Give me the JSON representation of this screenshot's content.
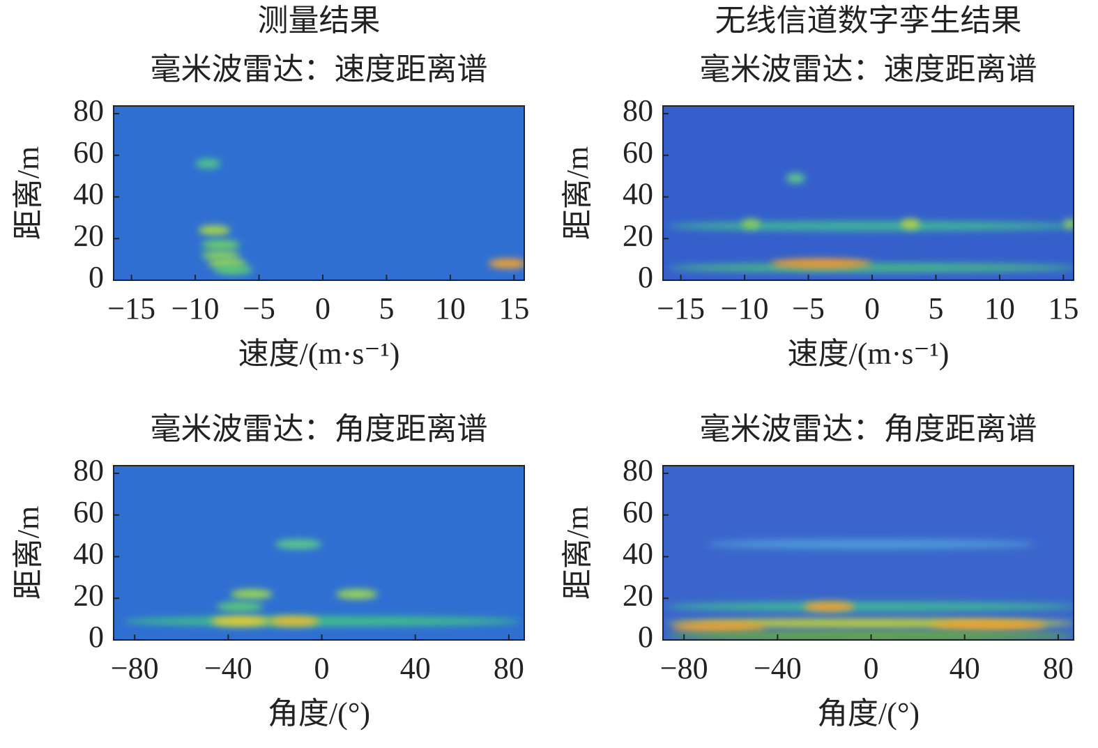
{
  "chart_data": [
    {
      "type": "heatmap",
      "group_title": "测量结果",
      "title": "毫米波雷达：速度距离谱",
      "xlabel": "速度/(m·s⁻¹)",
      "ylabel": "距离/m",
      "background": "#2f6fd2",
      "xlim": [
        -16.4,
        15.8
      ],
      "ylim": [
        0,
        83.7
      ],
      "xticks": [
        {
          "value": -15,
          "label": "−15"
        },
        {
          "value": -10,
          "label": "−10"
        },
        {
          "value": -5,
          "label": "−5"
        },
        0,
        5,
        10,
        15
      ],
      "yticks": [
        0,
        20,
        40,
        60,
        80
      ],
      "peaks": [
        {
          "x": -9,
          "y": 56,
          "width": 2,
          "color": "#4fc48a"
        },
        {
          "x": -8.5,
          "y": 24,
          "width": 2.5,
          "color": "#a6d64a"
        },
        {
          "x": -8,
          "y": 17,
          "width": 3,
          "color": "#6ccf6a"
        },
        {
          "x": -8,
          "y": 12,
          "width": 3,
          "color": "#7fd060"
        },
        {
          "x": -7.5,
          "y": 8,
          "width": 3,
          "color": "#9ad652"
        },
        {
          "x": -7,
          "y": 5,
          "width": 3,
          "color": "#5cc878"
        },
        {
          "x": 14.5,
          "y": 8,
          "width": 3,
          "color": "#f0a030"
        }
      ]
    },
    {
      "type": "heatmap",
      "group_title": "无线信道数字孪生结果",
      "title": "毫米波雷达：速度距离谱",
      "xlabel": "速度/(m·s⁻¹)",
      "ylabel": "距离/m",
      "background": "#3560cc",
      "xlim": [
        -16.4,
        15.8
      ],
      "ylim": [
        0,
        83.7
      ],
      "xticks": [
        {
          "value": -15,
          "label": "−15"
        },
        {
          "value": -10,
          "label": "−10"
        },
        {
          "value": -5,
          "label": "−5"
        },
        0,
        5,
        10,
        15
      ],
      "yticks": [
        0,
        20,
        40,
        60,
        80
      ],
      "peaks": [
        {
          "x": 0,
          "y": 26,
          "width": 32,
          "color": "#3fb29a"
        },
        {
          "x": 0,
          "y": 6,
          "width": 32,
          "color": "#44b28e"
        },
        {
          "x": -6,
          "y": 49,
          "width": 1.5,
          "color": "#5cc88a"
        },
        {
          "x": -9.5,
          "y": 27,
          "width": 1.5,
          "color": "#8acb5a"
        },
        {
          "x": 3,
          "y": 27,
          "width": 1.5,
          "color": "#b6cf44"
        },
        {
          "x": -4,
          "y": 8,
          "width": 8,
          "color": "#f09a30"
        },
        {
          "x": 15.5,
          "y": 27,
          "width": 1,
          "color": "#8acb5a"
        }
      ]
    },
    {
      "type": "heatmap",
      "title": "毫米波雷达：角度距离谱",
      "xlabel": "角度/(°)",
      "ylabel": "距离/m",
      "background": "#2f6fd2",
      "xlim": [
        -89,
        86.6
      ],
      "ylim": [
        0,
        83.7
      ],
      "xticks": [
        {
          "value": -80,
          "label": "−80"
        },
        {
          "value": -40,
          "label": "−40"
        },
        0,
        40,
        80
      ],
      "yticks": [
        0,
        20,
        40,
        60,
        80
      ],
      "peaks": [
        {
          "x": 0,
          "y": 9,
          "width": 170,
          "color": "#3fbf8a"
        },
        {
          "x": -10,
          "y": 46,
          "width": 20,
          "color": "#5cc88a"
        },
        {
          "x": -30,
          "y": 22,
          "width": 18,
          "color": "#9ad652"
        },
        {
          "x": 15,
          "y": 22,
          "width": 18,
          "color": "#9ad652"
        },
        {
          "x": -35,
          "y": 16,
          "width": 20,
          "color": "#5cc878"
        },
        {
          "x": -35,
          "y": 9,
          "width": 25,
          "color": "#e8c830"
        },
        {
          "x": -12,
          "y": 9,
          "width": 22,
          "color": "#e8b830"
        }
      ]
    },
    {
      "type": "heatmap",
      "title": "毫米波雷达：角度距离谱",
      "xlabel": "角度/(°)",
      "ylabel": "距离/m",
      "background": "#3a66cc",
      "xlim": [
        -89,
        86.6
      ],
      "ylim": [
        0,
        83.7
      ],
      "xticks": [
        {
          "value": -80,
          "label": "−80"
        },
        {
          "value": -40,
          "label": "−40"
        },
        0,
        40,
        80
      ],
      "yticks": [
        0,
        20,
        40,
        60,
        80
      ],
      "peaks": [
        {
          "x": 0,
          "y": 46,
          "width": 140,
          "color": "#4f9ad8"
        },
        {
          "x": 0,
          "y": 16,
          "width": 175,
          "color": "#3fb29a"
        },
        {
          "x": 0,
          "y": 8,
          "width": 175,
          "color": "#b8cc40"
        },
        {
          "x": -18,
          "y": 16,
          "width": 22,
          "color": "#f0a030"
        },
        {
          "x": 50,
          "y": 7,
          "width": 50,
          "color": "#f0a030"
        },
        {
          "x": -65,
          "y": 6,
          "width": 40,
          "color": "#f0a030"
        },
        {
          "x": 0,
          "y": 2,
          "width": 175,
          "color": "#6aa840"
        }
      ]
    }
  ]
}
